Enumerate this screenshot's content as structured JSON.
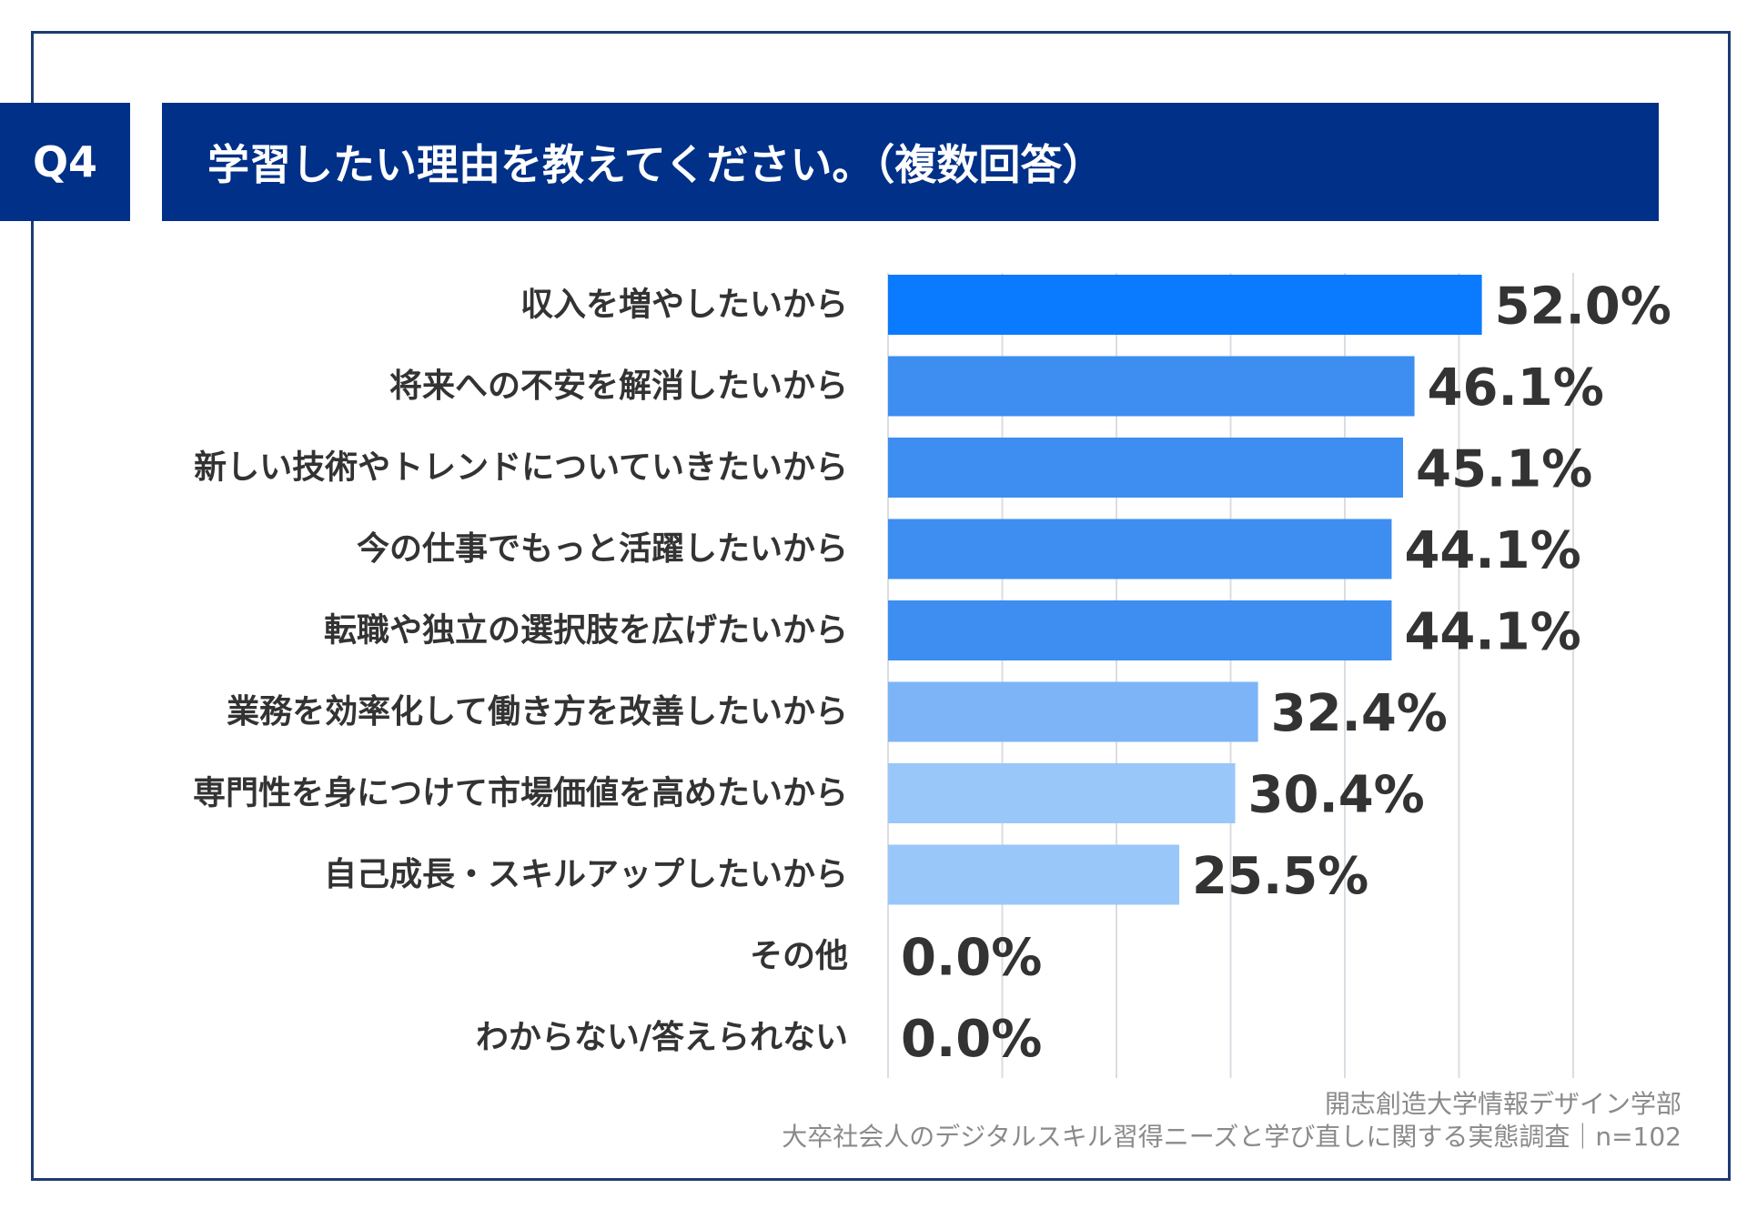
{
  "header": {
    "question_number": "Q4",
    "title": "学習したい理由を教えてください。（複数回答）"
  },
  "footer": {
    "source": "開志創造大学情報デザイン学部",
    "survey": "大卒社会人のデジタルスキル習得ニーズと学び直しに関する実態調査｜n=102"
  },
  "chart_data": {
    "type": "bar",
    "orientation": "horizontal",
    "title": "",
    "xlabel": "",
    "ylabel": "",
    "xlim": [
      0,
      60
    ],
    "grid": true,
    "categories": [
      "収入を増やしたいから",
      "将来への不安を解消したいから",
      "新しい技術やトレンドについていきたいから",
      "今の仕事でもっと活躍したいから",
      "転職や独立の選択肢を広げたいから",
      "業務を効率化して働き方を改善したいから",
      "専門性を身につけて市場価値を高めたいから",
      "自己成長・スキルアップしたいから",
      "その他",
      "わからない/答えられない"
    ],
    "values": [
      52.0,
      46.1,
      45.1,
      44.1,
      44.1,
      32.4,
      30.4,
      25.5,
      0.0,
      0.0
    ],
    "value_labels": [
      "52.0%",
      "46.1%",
      "45.1%",
      "44.1%",
      "44.1%",
      "32.4%",
      "30.4%",
      "25.5%",
      "0.0%",
      "0.0%"
    ],
    "bar_colors": [
      "#0a7aff",
      "#3d8ef0",
      "#3d8ef0",
      "#3d8ef0",
      "#3d8ef0",
      "#7db4f7",
      "#9ac7fa",
      "#9ac7fa",
      "#9ac7fa",
      "#9ac7fa"
    ],
    "grid_color": "#d9dde3"
  }
}
